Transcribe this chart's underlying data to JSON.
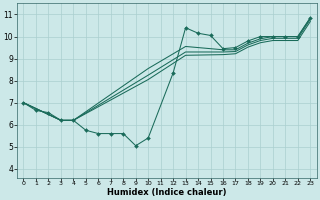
{
  "xlabel": "Humidex (Indice chaleur)",
  "bg_color": "#cce8e8",
  "line_color": "#1a6b5a",
  "grid_color": "#aacfcf",
  "xlim": [
    -0.5,
    23.5
  ],
  "ylim": [
    3.6,
    11.5
  ],
  "xticks": [
    0,
    1,
    2,
    3,
    4,
    5,
    6,
    7,
    8,
    9,
    10,
    11,
    12,
    13,
    14,
    15,
    16,
    17,
    18,
    19,
    20,
    21,
    22,
    23
  ],
  "yticks": [
    4,
    5,
    6,
    7,
    8,
    9,
    10,
    11
  ],
  "lines": [
    {
      "x": [
        0,
        1,
        2,
        3,
        4,
        5,
        6,
        7,
        8,
        9,
        10,
        12,
        13,
        14,
        15,
        16,
        17,
        18,
        19,
        20,
        21,
        22,
        23
      ],
      "y": [
        7.0,
        6.65,
        6.55,
        6.2,
        6.2,
        5.75,
        5.6,
        5.6,
        5.6,
        5.05,
        5.4,
        8.35,
        10.4,
        10.15,
        10.05,
        9.45,
        9.5,
        9.8,
        10.0,
        10.0,
        10.0,
        10.0,
        10.85
      ],
      "marker": "D",
      "markersize": 2.0
    },
    {
      "x": [
        0,
        3,
        4,
        10,
        13,
        16,
        17,
        18,
        19,
        20,
        21,
        22,
        23
      ],
      "y": [
        7.0,
        6.2,
        6.2,
        8.55,
        9.55,
        9.4,
        9.4,
        9.7,
        9.9,
        10.0,
        10.0,
        10.0,
        10.85
      ],
      "marker": null
    },
    {
      "x": [
        0,
        3,
        4,
        10,
        13,
        16,
        17,
        18,
        19,
        20,
        21,
        22,
        23
      ],
      "y": [
        7.0,
        6.2,
        6.2,
        8.25,
        9.3,
        9.3,
        9.32,
        9.62,
        9.82,
        9.92,
        9.92,
        9.92,
        10.78
      ],
      "marker": null
    },
    {
      "x": [
        0,
        3,
        4,
        10,
        13,
        16,
        17,
        18,
        19,
        20,
        21,
        22,
        23
      ],
      "y": [
        7.0,
        6.2,
        6.2,
        8.05,
        9.15,
        9.18,
        9.22,
        9.52,
        9.72,
        9.82,
        9.82,
        9.82,
        10.68
      ],
      "marker": null
    }
  ]
}
